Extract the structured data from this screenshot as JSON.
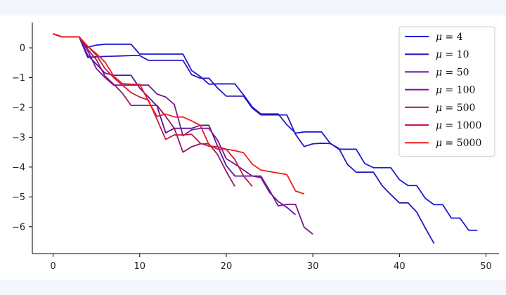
{
  "chart_data": {
    "type": "line",
    "title": "",
    "xlabel": "",
    "ylabel": "",
    "xlim": [
      -2.4,
      51.5
    ],
    "ylim": [
      -6.9,
      0.85
    ],
    "xticks": [
      0,
      10,
      20,
      30,
      40,
      50
    ],
    "yticks": [
      0,
      -1,
      -2,
      -3,
      -4,
      -5,
      -6
    ],
    "xtick_labels": [
      "0",
      "10",
      "20",
      "30",
      "40",
      "50"
    ],
    "ytick_labels": [
      "0",
      "−1",
      "−2",
      "−3",
      "−4",
      "−5",
      "−6"
    ],
    "legend_position": "top-right",
    "series": [
      {
        "name": "μ = 4",
        "symbol": "μ",
        "value": "4",
        "color": "#1a1ad6",
        "x": [
          0,
          1,
          2,
          3,
          4,
          5,
          6,
          7,
          8,
          9,
          10,
          11,
          12,
          13,
          14,
          15,
          16,
          17,
          18,
          19,
          20,
          21,
          22,
          23,
          24,
          25,
          26,
          27,
          28,
          29,
          30,
          31,
          32,
          33,
          34,
          35,
          36,
          37,
          38,
          39,
          40,
          41,
          42,
          43,
          44,
          45,
          46,
          47,
          48,
          49
        ],
        "y": [
          0.47,
          0.37,
          0.37,
          0.37,
          0.02,
          0.09,
          0.12,
          0.12,
          0.12,
          0.12,
          -0.21,
          -0.21,
          -0.21,
          -0.21,
          -0.21,
          -0.21,
          -0.76,
          -0.96,
          -1.22,
          -1.21,
          -1.21,
          -1.21,
          -1.58,
          -1.98,
          -2.22,
          -2.22,
          -2.22,
          -2.58,
          -2.86,
          -2.82,
          -2.82,
          -2.82,
          -3.2,
          -3.4,
          -3.4,
          -3.4,
          -3.88,
          -4.02,
          -4.02,
          -4.02,
          -4.42,
          -4.62,
          -4.62,
          -5.05,
          -5.26,
          -5.26,
          -5.71,
          -5.71,
          -6.12,
          -6.12
        ]
      },
      {
        "name": "μ = 10",
        "symbol": "μ",
        "value": "10",
        "color": "#2a16b8",
        "x": [
          0,
          1,
          2,
          3,
          4,
          5,
          6,
          7,
          8,
          9,
          10,
          11,
          12,
          13,
          14,
          15,
          16,
          17,
          18,
          19,
          20,
          21,
          22,
          23,
          24,
          25,
          26,
          27,
          28,
          29,
          30,
          31,
          32,
          33,
          34,
          35,
          36,
          37,
          38,
          39,
          40,
          41,
          42,
          43,
          44
        ],
        "y": [
          0.47,
          0.37,
          0.37,
          0.37,
          -0.32,
          -0.3,
          -0.29,
          -0.28,
          -0.27,
          -0.26,
          -0.26,
          -0.42,
          -0.42,
          -0.42,
          -0.42,
          -0.42,
          -0.9,
          -1.02,
          -1.02,
          -1.35,
          -1.62,
          -1.62,
          -1.62,
          -2.02,
          -2.25,
          -2.25,
          -2.25,
          -2.25,
          -2.9,
          -3.31,
          -3.22,
          -3.2,
          -3.21,
          -3.37,
          -3.91,
          -4.17,
          -4.17,
          -4.17,
          -4.62,
          -4.92,
          -5.2,
          -5.2,
          -5.51,
          -6.05,
          -6.56
        ]
      },
      {
        "name": "μ = 50",
        "symbol": "μ",
        "value": "50",
        "color": "#5a14a8",
        "x": [
          0,
          1,
          2,
          3,
          4,
          5,
          6,
          7,
          8,
          9,
          10,
          11,
          12,
          13,
          14,
          15,
          16,
          17,
          18,
          19,
          20,
          21,
          22,
          23,
          24,
          25,
          26,
          27,
          28
        ],
        "y": [
          0.47,
          0.37,
          0.37,
          0.37,
          -0.25,
          -0.55,
          -0.85,
          -0.92,
          -0.92,
          -0.92,
          -1.35,
          -1.65,
          -1.95,
          -2.85,
          -2.7,
          -2.7,
          -2.7,
          -2.6,
          -2.6,
          -3.3,
          -3.95,
          -4.3,
          -4.3,
          -4.3,
          -4.35,
          -4.85,
          -5.15,
          -5.35,
          -5.6
        ]
      },
      {
        "name": "μ = 100",
        "symbol": "μ",
        "value": "100",
        "color": "#7a1690",
        "x": [
          0,
          1,
          2,
          3,
          4,
          5,
          6,
          7,
          8,
          9,
          10,
          11,
          12,
          13,
          14,
          15,
          16,
          17,
          18,
          19,
          20,
          21,
          22,
          23,
          24,
          25,
          26,
          27,
          28,
          29,
          30
        ],
        "y": [
          0.47,
          0.37,
          0.37,
          0.37,
          -0.1,
          -0.7,
          -1.0,
          -1.25,
          -1.25,
          -1.25,
          -1.25,
          -1.25,
          -1.55,
          -1.65,
          -1.9,
          -2.95,
          -2.75,
          -2.7,
          -2.7,
          -3.1,
          -3.72,
          -3.9,
          -4.1,
          -4.3,
          -4.3,
          -4.78,
          -5.3,
          -5.25,
          -5.25,
          -6.02,
          -6.25
        ]
      },
      {
        "name": "μ = 500",
        "symbol": "μ",
        "value": "500",
        "color": "#931870",
        "x": [
          0,
          1,
          2,
          3,
          4,
          5,
          6,
          7,
          8,
          9,
          10,
          11,
          12,
          13,
          14,
          15,
          16,
          17,
          18,
          19,
          20,
          21
        ],
        "y": [
          0.47,
          0.37,
          0.37,
          0.37,
          -0.05,
          -0.4,
          -0.95,
          -1.22,
          -1.52,
          -1.93,
          -1.93,
          -1.93,
          -1.93,
          -2.3,
          -2.7,
          -3.5,
          -3.32,
          -3.22,
          -3.22,
          -3.58,
          -4.15,
          -4.65
        ]
      },
      {
        "name": "μ = 1000",
        "symbol": "μ",
        "value": "1000",
        "color": "#c41a46",
        "x": [
          0,
          1,
          2,
          3,
          4,
          5,
          6,
          7,
          8,
          9,
          10,
          11,
          12,
          13,
          14,
          15,
          16,
          17,
          18,
          19,
          20,
          21,
          22,
          23
        ],
        "y": [
          0.47,
          0.37,
          0.37,
          0.37,
          0.05,
          -0.25,
          -0.7,
          -1.0,
          -1.25,
          -1.5,
          -1.65,
          -1.75,
          -2.4,
          -3.07,
          -2.92,
          -2.92,
          -2.9,
          -3.2,
          -3.3,
          -3.32,
          -3.4,
          -3.75,
          -4.3,
          -4.65
        ]
      },
      {
        "name": "μ = 5000",
        "symbol": "μ",
        "value": "5000",
        "color": "#f01c1c",
        "x": [
          0,
          1,
          2,
          3,
          4,
          5,
          6,
          7,
          8,
          9,
          10,
          11,
          12,
          13,
          14,
          15,
          16,
          17,
          18,
          19,
          20,
          21,
          22,
          23,
          24,
          25,
          26,
          27,
          28,
          29
        ],
        "y": [
          0.47,
          0.37,
          0.37,
          0.37,
          0.05,
          -0.2,
          -0.48,
          -0.95,
          -1.2,
          -1.22,
          -1.22,
          -1.78,
          -2.3,
          -2.22,
          -2.32,
          -2.32,
          -2.45,
          -2.6,
          -3.25,
          -3.4,
          -3.4,
          -3.45,
          -3.52,
          -3.9,
          -4.1,
          -4.15,
          -4.2,
          -4.25,
          -4.8,
          -4.9
        ]
      }
    ]
  }
}
